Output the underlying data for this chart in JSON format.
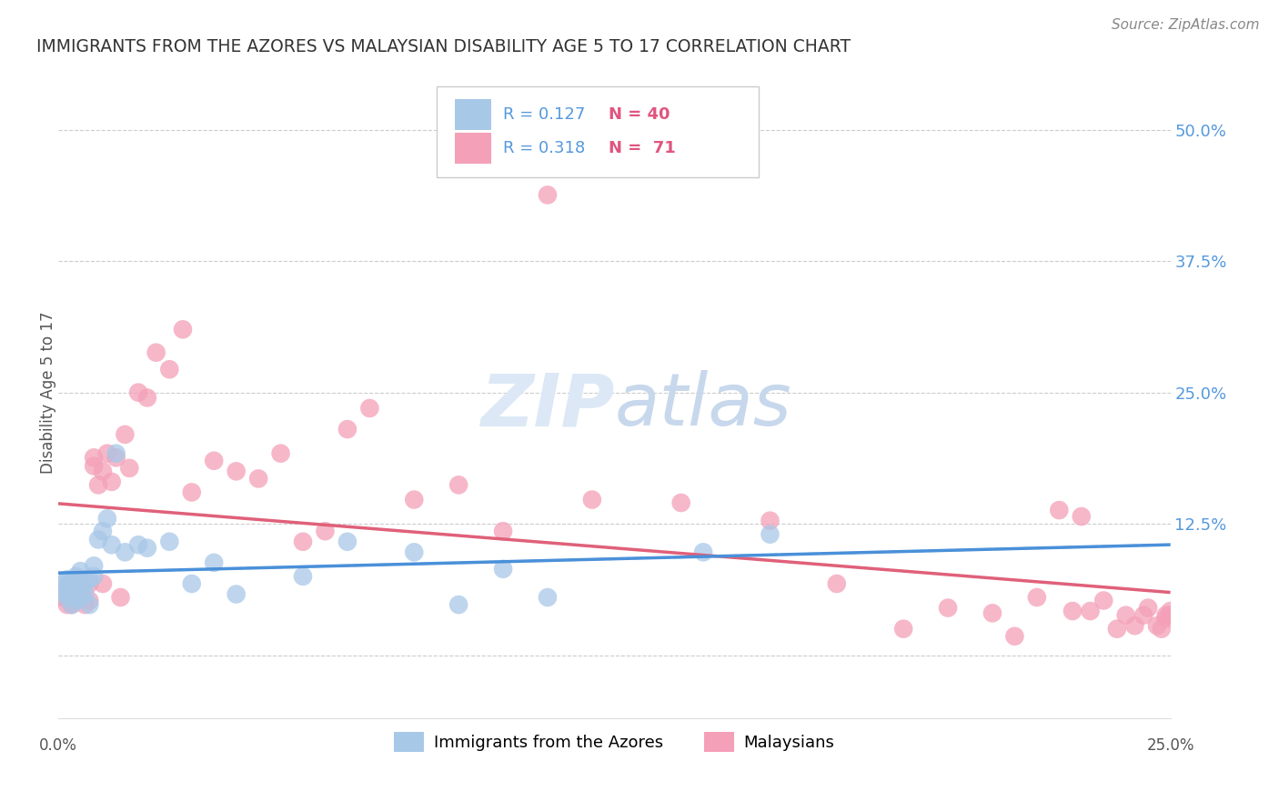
{
  "title": "IMMIGRANTS FROM THE AZORES VS MALAYSIAN DISABILITY AGE 5 TO 17 CORRELATION CHART",
  "source": "Source: ZipAtlas.com",
  "ylabel": "Disability Age 5 to 17",
  "color_blue": "#a8c8e8",
  "color_pink": "#f4a0b8",
  "color_blue_line": "#4a90d9",
  "color_pink_line": "#e0607a",
  "color_blue_dashed": "#a8c8e8",
  "background": "#ffffff",
  "grid_color": "#cccccc",
  "watermark_color": "#dce8f5",
  "xmin": 0.0,
  "xmax": 0.25,
  "ymin": -0.06,
  "ymax": 0.56,
  "azores_x": [
    0.001,
    0.001,
    0.002,
    0.002,
    0.002,
    0.003,
    0.003,
    0.003,
    0.004,
    0.004,
    0.004,
    0.005,
    0.005,
    0.005,
    0.006,
    0.006,
    0.007,
    0.007,
    0.008,
    0.008,
    0.009,
    0.01,
    0.011,
    0.012,
    0.013,
    0.015,
    0.018,
    0.02,
    0.025,
    0.03,
    0.035,
    0.04,
    0.055,
    0.065,
    0.08,
    0.09,
    0.1,
    0.11,
    0.145,
    0.16
  ],
  "azores_y": [
    0.06,
    0.068,
    0.055,
    0.065,
    0.072,
    0.058,
    0.07,
    0.048,
    0.06,
    0.075,
    0.052,
    0.065,
    0.055,
    0.08,
    0.068,
    0.058,
    0.072,
    0.048,
    0.075,
    0.085,
    0.11,
    0.118,
    0.13,
    0.105,
    0.192,
    0.098,
    0.105,
    0.102,
    0.108,
    0.068,
    0.088,
    0.058,
    0.075,
    0.108,
    0.098,
    0.048,
    0.082,
    0.055,
    0.098,
    0.115
  ],
  "malay_x": [
    0.001,
    0.001,
    0.002,
    0.002,
    0.002,
    0.003,
    0.003,
    0.003,
    0.004,
    0.004,
    0.004,
    0.005,
    0.005,
    0.006,
    0.006,
    0.007,
    0.007,
    0.008,
    0.008,
    0.009,
    0.01,
    0.01,
    0.011,
    0.012,
    0.013,
    0.014,
    0.015,
    0.016,
    0.018,
    0.02,
    0.022,
    0.025,
    0.028,
    0.03,
    0.035,
    0.04,
    0.045,
    0.05,
    0.055,
    0.06,
    0.065,
    0.07,
    0.08,
    0.09,
    0.1,
    0.11,
    0.12,
    0.14,
    0.16,
    0.175,
    0.19,
    0.2,
    0.21,
    0.215,
    0.22,
    0.225,
    0.228,
    0.23,
    0.232,
    0.235,
    0.238,
    0.24,
    0.242,
    0.244,
    0.245,
    0.247,
    0.248,
    0.249,
    0.249,
    0.25,
    0.25
  ],
  "malay_y": [
    0.06,
    0.055,
    0.065,
    0.055,
    0.048,
    0.068,
    0.058,
    0.048,
    0.06,
    0.072,
    0.052,
    0.065,
    0.058,
    0.072,
    0.048,
    0.068,
    0.052,
    0.18,
    0.188,
    0.162,
    0.175,
    0.068,
    0.192,
    0.165,
    0.188,
    0.055,
    0.21,
    0.178,
    0.25,
    0.245,
    0.288,
    0.272,
    0.31,
    0.155,
    0.185,
    0.175,
    0.168,
    0.192,
    0.108,
    0.118,
    0.215,
    0.235,
    0.148,
    0.162,
    0.118,
    0.438,
    0.148,
    0.145,
    0.128,
    0.068,
    0.025,
    0.045,
    0.04,
    0.018,
    0.055,
    0.138,
    0.042,
    0.132,
    0.042,
    0.052,
    0.025,
    0.038,
    0.028,
    0.038,
    0.045,
    0.028,
    0.025,
    0.038,
    0.035,
    0.042,
    0.038
  ]
}
